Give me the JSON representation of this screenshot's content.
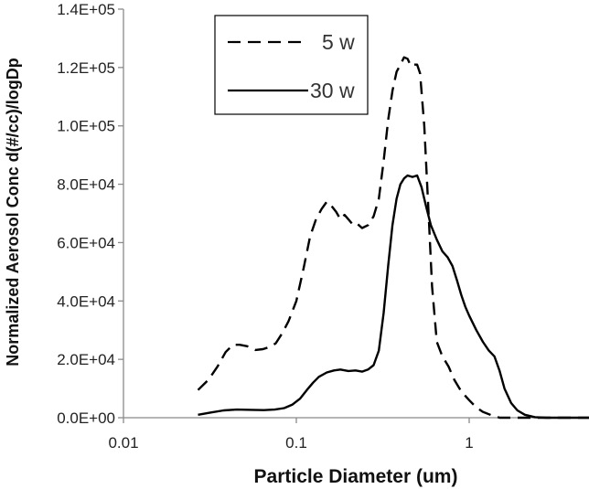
{
  "chart_data": {
    "type": "line",
    "xlabel": "Particle Diameter (um)",
    "ylabel": "Normalized Aerosol Conc d(#/cc)/logDp",
    "x_scale": "log",
    "xlim": [
      0.01,
      6
    ],
    "ylim": [
      0,
      140000
    ],
    "x_ticks": [
      {
        "value": 0.01,
        "label": "0.01"
      },
      {
        "value": 0.1,
        "label": "0.1"
      },
      {
        "value": 1,
        "label": "1"
      }
    ],
    "y_ticks": [
      {
        "value": 0,
        "label": "0.0E+00"
      },
      {
        "value": 20000,
        "label": "2.0E+04"
      },
      {
        "value": 40000,
        "label": "4.0E+04"
      },
      {
        "value": 60000,
        "label": "6.0E+04"
      },
      {
        "value": 80000,
        "label": "8.0E+04"
      },
      {
        "value": 100000,
        "label": "1.0E+05"
      },
      {
        "value": 120000,
        "label": "1.2E+05"
      },
      {
        "value": 140000,
        "label": "1.4E+05"
      }
    ],
    "grid": false,
    "legend": {
      "position": "top-left"
    },
    "series": [
      {
        "name": "5 w",
        "style": "dashed",
        "color": "#000000",
        "points": [
          [
            0.027,
            9500
          ],
          [
            0.031,
            13000
          ],
          [
            0.035,
            17500
          ],
          [
            0.039,
            22500
          ],
          [
            0.043,
            25000
          ],
          [
            0.047,
            25000
          ],
          [
            0.052,
            24500
          ],
          [
            0.058,
            23200
          ],
          [
            0.064,
            23500
          ],
          [
            0.07,
            24200
          ],
          [
            0.076,
            25500
          ],
          [
            0.083,
            29000
          ],
          [
            0.09,
            33000
          ],
          [
            0.1,
            40000
          ],
          [
            0.11,
            51000
          ],
          [
            0.12,
            62000
          ],
          [
            0.13,
            68000
          ],
          [
            0.14,
            71500
          ],
          [
            0.15,
            74000
          ],
          [
            0.16,
            72500
          ],
          [
            0.17,
            70500
          ],
          [
            0.18,
            68000
          ],
          [
            0.19,
            69500
          ],
          [
            0.2,
            68000
          ],
          [
            0.21,
            66500
          ],
          [
            0.22,
            67000
          ],
          [
            0.24,
            65000
          ],
          [
            0.26,
            66000
          ],
          [
            0.28,
            69000
          ],
          [
            0.3,
            75000
          ],
          [
            0.32,
            88000
          ],
          [
            0.34,
            102000
          ],
          [
            0.36,
            112000
          ],
          [
            0.38,
            118500
          ],
          [
            0.4,
            121000
          ],
          [
            0.42,
            123500
          ],
          [
            0.44,
            123000
          ],
          [
            0.46,
            120500
          ],
          [
            0.48,
            121000
          ],
          [
            0.5,
            121000
          ],
          [
            0.52,
            118000
          ],
          [
            0.55,
            100000
          ],
          [
            0.58,
            72000
          ],
          [
            0.61,
            45000
          ],
          [
            0.65,
            26000
          ],
          [
            0.7,
            21000
          ],
          [
            0.76,
            17500
          ],
          [
            0.82,
            13000
          ],
          [
            0.9,
            9000
          ],
          [
            1.0,
            6000
          ],
          [
            1.1,
            3500
          ],
          [
            1.2,
            2000
          ],
          [
            1.35,
            800
          ],
          [
            1.5,
            0
          ],
          [
            6,
            0
          ]
        ]
      },
      {
        "name": "30 w",
        "style": "solid",
        "color": "#000000",
        "points": [
          [
            0.027,
            1000
          ],
          [
            0.032,
            1800
          ],
          [
            0.038,
            2500
          ],
          [
            0.045,
            2800
          ],
          [
            0.055,
            2700
          ],
          [
            0.065,
            2600
          ],
          [
            0.075,
            2800
          ],
          [
            0.085,
            3300
          ],
          [
            0.095,
            4500
          ],
          [
            0.105,
            6500
          ],
          [
            0.115,
            9500
          ],
          [
            0.125,
            12000
          ],
          [
            0.135,
            14000
          ],
          [
            0.15,
            15500
          ],
          [
            0.165,
            16200
          ],
          [
            0.18,
            16500
          ],
          [
            0.2,
            16000
          ],
          [
            0.22,
            16200
          ],
          [
            0.24,
            15800
          ],
          [
            0.26,
            16500
          ],
          [
            0.28,
            18000
          ],
          [
            0.3,
            23000
          ],
          [
            0.32,
            36000
          ],
          [
            0.34,
            52000
          ],
          [
            0.36,
            66000
          ],
          [
            0.38,
            75000
          ],
          [
            0.4,
            80000
          ],
          [
            0.42,
            82000
          ],
          [
            0.44,
            83000
          ],
          [
            0.47,
            82500
          ],
          [
            0.5,
            83000
          ],
          [
            0.53,
            79000
          ],
          [
            0.56,
            73000
          ],
          [
            0.6,
            66000
          ],
          [
            0.65,
            61000
          ],
          [
            0.7,
            57000
          ],
          [
            0.75,
            55000
          ],
          [
            0.8,
            52000
          ],
          [
            0.85,
            47000
          ],
          [
            0.9,
            42000
          ],
          [
            0.95,
            38000
          ],
          [
            1.0,
            35000
          ],
          [
            1.1,
            30000
          ],
          [
            1.2,
            26000
          ],
          [
            1.3,
            23000
          ],
          [
            1.4,
            21000
          ],
          [
            1.5,
            16000
          ],
          [
            1.6,
            10000
          ],
          [
            1.75,
            5000
          ],
          [
            1.9,
            2500
          ],
          [
            2.1,
            1000
          ],
          [
            2.4,
            200
          ],
          [
            2.8,
            0
          ],
          [
            6,
            0
          ]
        ]
      }
    ]
  }
}
